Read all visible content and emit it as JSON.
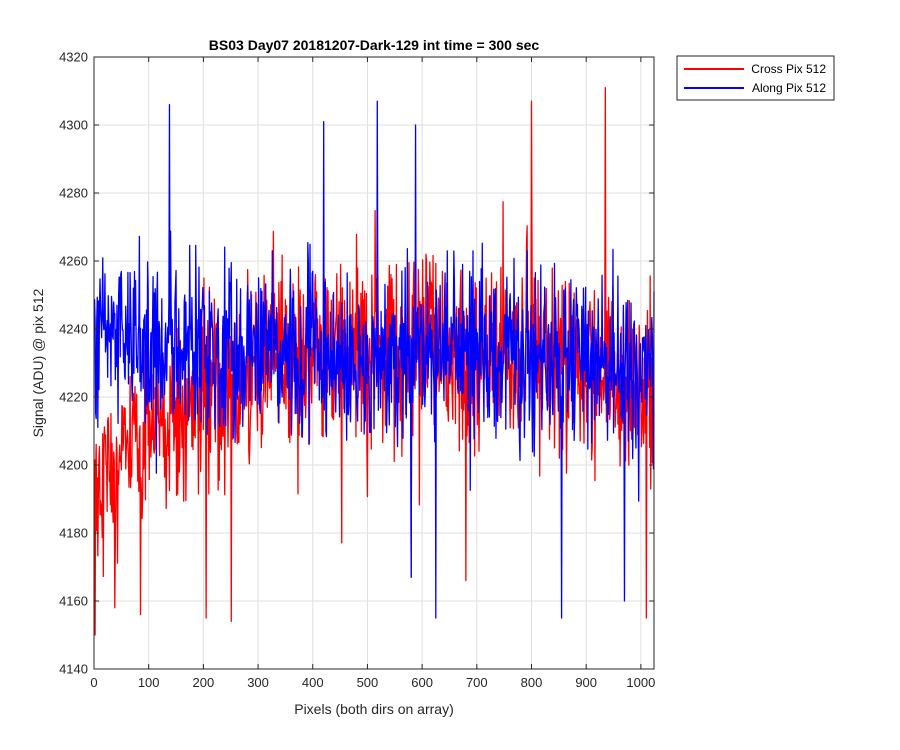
{
  "chart_data": {
    "type": "line",
    "title": "BS03 Day07 20181207-Dark-129 int time = 300 sec",
    "xlabel": "Pixels (both dirs on array)",
    "ylabel": "Signal (ADU) @ pix 512",
    "xlim": [
      0,
      1024
    ],
    "ylim": [
      4140,
      4320
    ],
    "xticks": [
      0,
      100,
      200,
      300,
      400,
      500,
      600,
      700,
      800,
      900,
      1000
    ],
    "yticks": [
      4140,
      4160,
      4180,
      4200,
      4220,
      4240,
      4260,
      4280,
      4300,
      4320
    ],
    "grid": true,
    "legend_position": "outside-top-right",
    "series": [
      {
        "name": "Cross Pix 512",
        "color": "#ff0000",
        "stats": {
          "n_points": 1024,
          "x_start": 1,
          "x_step": 1,
          "mean_start": 4195,
          "mean_mid": 4232,
          "mean_end": 4218,
          "spread": 22
        },
        "peaks": [
          [
            2,
            4150
          ],
          [
            38,
            4158
          ],
          [
            85,
            4156
          ],
          [
            205,
            4155
          ],
          [
            251,
            4154
          ],
          [
            580,
            4167
          ],
          [
            680,
            4166
          ],
          [
            800,
            4307
          ],
          [
            935,
            4311
          ],
          [
            1010,
            4155
          ]
        ]
      },
      {
        "name": "Along Pix 512",
        "color": "#0000ff",
        "stats": {
          "n_points": 1024,
          "x_start": 1,
          "x_step": 1,
          "mean_start": 4238,
          "mean_mid": 4232,
          "mean_end": 4228,
          "spread": 20
        },
        "peaks": [
          [
            138,
            4306
          ],
          [
            420,
            4301
          ],
          [
            518,
            4307
          ],
          [
            588,
            4300
          ],
          [
            580,
            4167
          ],
          [
            625,
            4155
          ],
          [
            855,
            4155
          ],
          [
            970,
            4160
          ]
        ]
      }
    ]
  }
}
